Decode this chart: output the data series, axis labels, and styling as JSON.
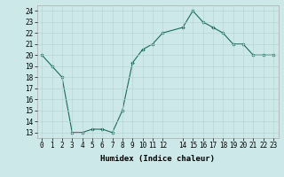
{
  "x": [
    0,
    1,
    2,
    3,
    4,
    5,
    6,
    7,
    8,
    9,
    10,
    11,
    12,
    14,
    15,
    16,
    17,
    18,
    19,
    20,
    21,
    22,
    23
  ],
  "y": [
    20,
    19,
    18,
    13,
    13,
    13.3,
    13.3,
    13,
    15,
    19.3,
    20.5,
    21,
    22,
    22.5,
    24,
    23,
    22.5,
    22,
    21,
    21,
    20,
    20,
    20
  ],
  "line_color": "#1a6b5e",
  "marker": "D",
  "marker_size": 1.8,
  "bg_color": "#cce8e8",
  "grid_color": "#b8d4d4",
  "xlabel": "Humidex (Indice chaleur)",
  "xlim": [
    -0.5,
    23.5
  ],
  "ylim": [
    12.5,
    24.5
  ],
  "yticks": [
    13,
    14,
    15,
    16,
    17,
    18,
    19,
    20,
    21,
    22,
    23,
    24
  ],
  "xtick_positions": [
    0,
    1,
    2,
    3,
    4,
    5,
    6,
    7,
    8,
    9,
    10,
    11,
    12,
    14,
    15,
    16,
    17,
    18,
    19,
    20,
    21,
    22,
    23
  ],
  "xtick_labels": [
    "0",
    "1",
    "2",
    "3",
    "4",
    "5",
    "6",
    "7",
    "8",
    "9",
    "10",
    "11",
    "12",
    "14",
    "15",
    "16",
    "17",
    "18",
    "19",
    "20",
    "21",
    "22",
    "23"
  ],
  "tick_fontsize": 5.5,
  "xlabel_fontsize": 6.5,
  "linewidth": 0.8
}
